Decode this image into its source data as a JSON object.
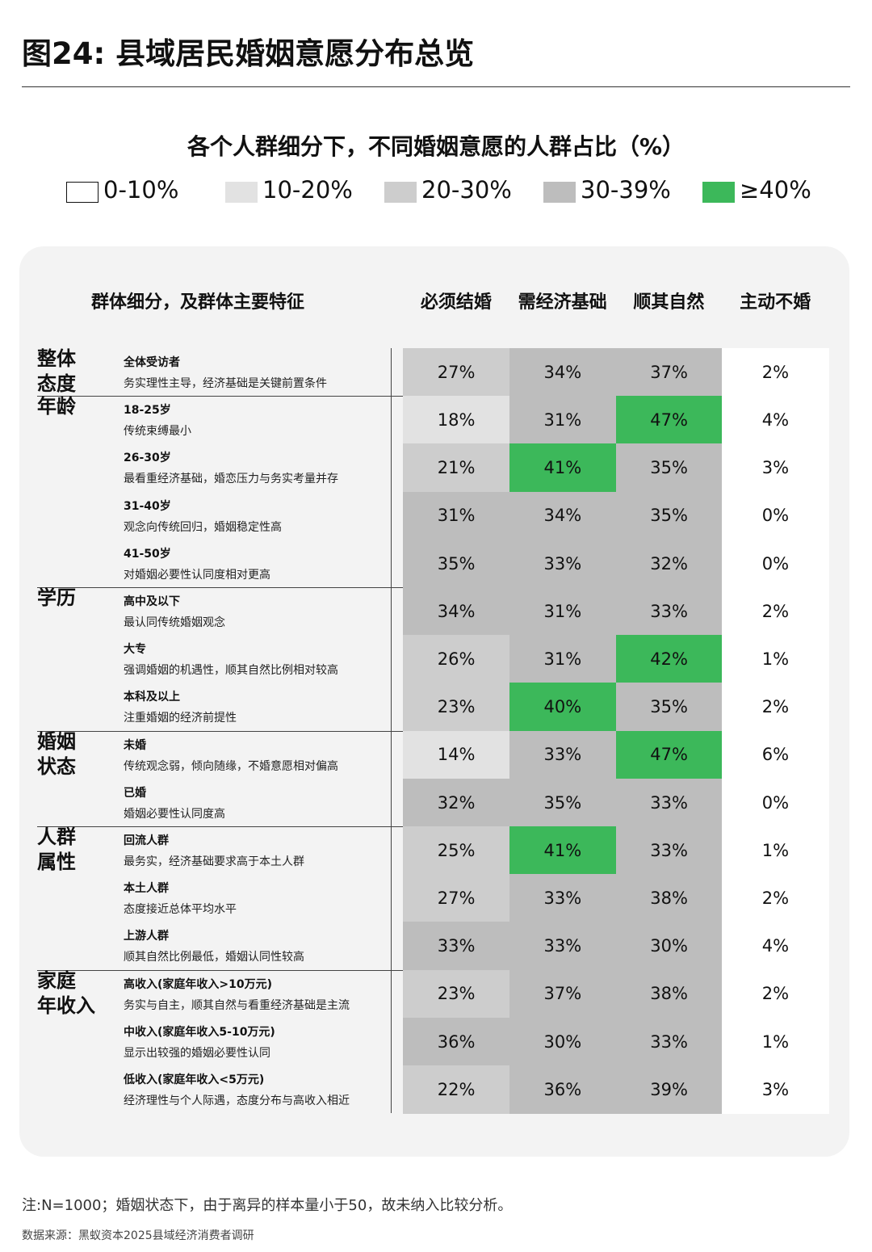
{
  "header": {
    "title": "图24: 县域居民婚姻意愿分布总览"
  },
  "chart_title": "各个人群细分下，不同婚姻意愿的人群占比（%）",
  "legend": [
    {
      "label": "0-10%",
      "color": "#ffffff"
    },
    {
      "label": "10-20%",
      "color": "#e2e2e2"
    },
    {
      "label": "20-30%",
      "color": "#cdcdcd"
    },
    {
      "label": "30-39%",
      "color": "#bdbdbd"
    },
    {
      "label": "≥40%",
      "color": "#3cb85a"
    }
  ],
  "table": {
    "columns": [
      "群体细分，及群体主要特征",
      "必须结婚",
      "需经济基础",
      "顺其自然",
      "主动不婚"
    ],
    "groups": [
      {
        "name": "整体\n态度",
        "rows": [
          {
            "label": "全体受访者",
            "desc": "务实理性主导，经济基础是关键前置条件",
            "cells": [
              "27%",
              "34%",
              "37%",
              "2%"
            ]
          }
        ]
      },
      {
        "name": "年龄",
        "rows": [
          {
            "label": "18-25岁",
            "desc": "传统束缚最小",
            "cells": [
              "18%",
              "31%",
              "47%",
              "4%"
            ]
          },
          {
            "label": "26-30岁",
            "desc": "最看重经济基础，婚恋压力与务实考量并存",
            "cells": [
              "21%",
              "41%",
              "35%",
              "3%"
            ]
          },
          {
            "label": "31-40岁",
            "desc": "观念向传统回归，婚姻稳定性高",
            "cells": [
              "31%",
              "34%",
              "35%",
              "0%"
            ]
          },
          {
            "label": "41-50岁",
            "desc": "对婚姻必要性认同度相对更高",
            "cells": [
              "35%",
              "33%",
              "32%",
              "0%"
            ]
          }
        ]
      },
      {
        "name": "学历",
        "rows": [
          {
            "label": "高中及以下",
            "desc": "最认同传统婚姻观念",
            "cells": [
              "34%",
              "31%",
              "33%",
              "2%"
            ]
          },
          {
            "label": "大专",
            "desc": "强调婚姻的机遇性，顺其自然比例相对较高",
            "cells": [
              "26%",
              "31%",
              "42%",
              "1%"
            ]
          },
          {
            "label": "本科及以上",
            "desc": "注重婚姻的经济前提性",
            "cells": [
              "23%",
              "40%",
              "35%",
              "2%"
            ]
          }
        ]
      },
      {
        "name": "婚姻\n状态",
        "rows": [
          {
            "label": "未婚",
            "desc": "传统观念弱，倾向随缘，不婚意愿相对偏高",
            "cells": [
              "14%",
              "33%",
              "47%",
              "6%"
            ]
          },
          {
            "label": "已婚",
            "desc": "婚姻必要性认同度高",
            "cells": [
              "32%",
              "35%",
              "33%",
              "0%"
            ]
          }
        ]
      },
      {
        "name": "人群\n属性",
        "rows": [
          {
            "label": "回流人群",
            "desc": "最务实，经济基础要求高于本土人群",
            "cells": [
              "25%",
              "41%",
              "33%",
              "1%"
            ]
          },
          {
            "label": "本土人群",
            "desc": "态度接近总体平均水平",
            "cells": [
              "27%",
              "33%",
              "38%",
              "2%"
            ]
          },
          {
            "label": "上游人群",
            "desc": "顺其自然比例最低，婚姻认同性较高",
            "cells": [
              "33%",
              "33%",
              "30%",
              "4%"
            ]
          }
        ]
      },
      {
        "name": "家庭\n年收入",
        "rows": [
          {
            "label": "高收入(家庭年收入>10万元)",
            "desc": "务实与自主，顺其自然与看重经济基础是主流",
            "cells": [
              "23%",
              "37%",
              "38%",
              "2%"
            ]
          },
          {
            "label": "中收入(家庭年收入5-10万元)",
            "desc": "显示出较强的婚姻必要性认同",
            "cells": [
              "36%",
              "30%",
              "33%",
              "1%"
            ]
          },
          {
            "label": "低收入(家庭年收入<5万元)",
            "desc": "经济理性与个人际遇，态度分布与高收入相近",
            "cells": [
              "22%",
              "36%",
              "39%",
              "3%"
            ]
          }
        ]
      }
    ]
  },
  "notes": [
    "注:N=1000；婚姻状态下，由于离异的样本量小于50，故未纳入比较分析。",
    "数据来源：黑蚁资本2025县域经济消费者调研"
  ]
}
